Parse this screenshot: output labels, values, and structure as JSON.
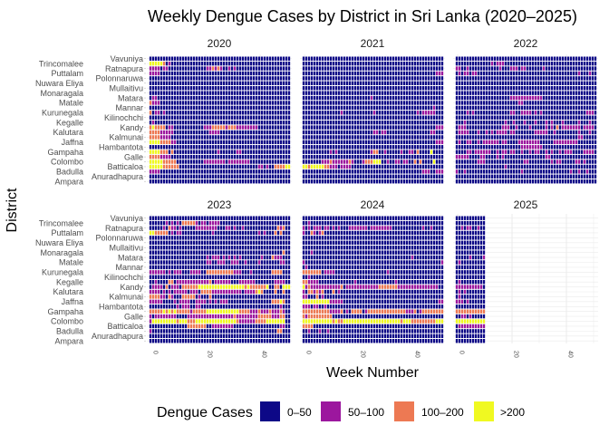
{
  "chart_data": {
    "type": "heatmap",
    "title": "Weekly Dengue Cases by District in Sri Lanka (2020–2025)",
    "xlabel": "Week Number",
    "ylabel": "District",
    "x_ticks": [
      0,
      20,
      40
    ],
    "grid": true,
    "legend": {
      "title": "Dengue Cases",
      "placement": "bottom",
      "categories": [
        {
          "label": "0–50",
          "color": "#0d0887"
        },
        {
          "label": "50–100",
          "color": "#9c179e"
        },
        {
          "label": "100–200",
          "color": "#ed7953"
        },
        {
          "label": ">200",
          "color": "#f0f921"
        }
      ]
    },
    "districts": [
      "Vavuniya",
      "Trincomalee",
      "Ratnapura",
      "Puttalam",
      "Polonnaruwa",
      "Nuwara Eliya",
      "Mullaitivu",
      "Monaragala",
      "Matara",
      "Matale",
      "Mannar",
      "Kurunegala",
      "Kilinochchi",
      "Kegalle",
      "Kandy",
      "Kalutara",
      "Kalmunai",
      "Jaffna",
      "Hambantota",
      "Gampaha",
      "Galle",
      "Colombo",
      "Batticaloa",
      "Badulla",
      "Anuradhapura",
      "Ampara"
    ],
    "facets": [
      {
        "year": "2020",
        "rows": [
          "0000000000000000000000000000000000000000000000000000",
          "3333320100000000000000000000000000000000000000000000",
          "1111011000000000000001121210010100000000000000000000",
          "1111000000000000000000000000000000000000000000000000",
          "0000000000000000000000000000000000000000000000000000",
          "0000000000000000000000000000000000000000000000000000",
          "0000000000000000000000000000000000000000000000000000",
          "0000000000000000000000000000000000000000000000000000",
          "0110000000000000000000000000000000000000000000000000",
          "2111000000000000000000000000000000000000000000000000",
          "0000000000000000000000000000000000000000000000000000",
          "2011010000000000000000000000000000000000000000000000",
          "0000000000000000000000000000000000000000000000000000",
          "0100000000000000000000000000000000000000000000000000",
          "2322220110000000000011122222122211111111000000000000",
          "2222111110000000000000111100000000000000000000000000",
          "2222111100000000000000000000000000000000000000000000",
          "3333222211000000000000000000000000000000000000000000",
          "0000000000000000000000000000000000000000000000000000",
          "3333222020000000000000000100000011000000000000000000",
          "2222111100000000000000000000000000000000000000000000",
          "3333322222000000000011111111011111111000000000000000",
          "3333322222200000000000000000000000000000110100222233",
          "1111000000000000000000000000000000000000000000000000",
          "0000000000000000000000000000000000000000000000000000",
          "0000000000000000000000000000000000000000000000000000"
        ]
      },
      {
        "year": "2021",
        "rows": [
          "0000000000000000000000000000000000000000000000000000",
          "0000000000000000000000000000000000000000000000000000",
          "0000000000000000000000000000000000000000000000000000",
          "0000000000000000000000000000000000000000000000000111",
          "0000000000000000000000000000000000000000000000000000",
          "0000000000000000000000000000000000000000000000000000",
          "0000000000000000000000000000000000000000000000000000",
          "0000000000000000000000000000000000000000000000000000",
          "0000000000000000000000000100000000000000000000000000",
          "0000000000000000000000000000000000000000000000000000",
          "0000000000000000000000000000000000000000000000001000",
          "0000000000000010000000000010000000000000001011111000",
          "0000000000000000000000000000000000000000000000000000",
          "0000000000000000000000000000000000000000000000000000",
          "0000000000000000000000000000000000000000000000000111",
          "0000000000000000000000000011011000000000000000011000",
          "0000000000000000000000000000000000000000000000000000",
          "0000000000000000000000000000000000000000000000000111",
          "0000000000000000000000000000000000000000000000000000",
          "0000000000101000000000000122001000001001102000030000",
          "0000000000000000000000000000000000000000000000000000",
          "0000000111211111121000122233300100110110020200003000",
          "3323333322111011110000000000000000000000000000000000",
          "0000000000000000000000000000000000000000000011100111",
          "0000000000000000000000000000000000000000000000000000",
          "0000000000000000000000000000000000000000000000000000"
        ]
      },
      {
        "year": "2022",
        "rows": [
          "0000000000000000000000000000000000000000000000000000",
          "0000000000000101110000000000000000000000000000000000",
          "1100100000000000100011101100000010000000000000000000",
          "0101101100000000000000000000000000000000000001000100",
          "0000000000000000000000000000000000000000000000000000",
          "0000000000000000000000000000000000000000000000000000",
          "0000000000000000000000000000000000000000000000000000",
          "0000000000000000000000000000000000000000000000000000",
          "0000000000000000000011111111111100000000000000000000",
          "0000000000000000000000011000000000000000000000000000",
          "0000000000000000000000000000000000000000000000000000",
          "0000101000000000000011001111010100000000000000001110",
          "0000000000000000000000000000000000000000000000000000",
          "0001000000000000001001000100010001010001000001000100",
          "0111000000000000011100100001000001010201111111011110",
          "0111100010010101111011000000011111001000000001000100",
          "0000000000000000000000000000000000000000000001100000",
          "0100110010111111011000011111111000001111111110000000",
          "0000000000000000000000001111111100000000000000000000",
          "0000110111111001011011001001011001010010111000011110",
          "1111100001100001010000000000000001100000000000000000",
          "0000000011100000000000000110000000010110000011010000",
          "0000000000000000001000000000000000000000000000000000",
          "1001000000000000000000001000000000000000001001001000",
          "0000000000000000000000000000000000000000000000000000",
          "0000000000000000000000000000000000000000000000000000"
        ]
      },
      {
        "year": "2023",
        "rows": [
          "0000000000000000000000000000000000000000000000000000",
          "0000001010102222210110111100000000000000000000000000",
          "0000010211010000011111111000110100100000000000021200",
          "3322222010110000000000010000000000000000101000202000",
          "0000000000000000000000000000000000000000000000000000",
          "0000000000000000000000000000000000000000000000000000",
          "0000000000000000000000000000000000000000000000000000",
          "0000000000000000000000000000000000000000000000000200",
          "0000000000000000000001011101010101000000010002111000",
          "0000000000000000000001100111001110010000100000001100",
          "0000000000000000000000000000000000000000000000000000",
          "1111110101110001111002222222222111000100000002222000",
          "0000000000000000000000000000000000000000000000000000",
          "0010000220111111111111201111110001111110000000111100",
          "0111102011102222223333333333333333323222222300220333",
          "1111010101111101110222211111111111011112320000200200",
          "2222110210002222201000200000000000000000000000000000",
          "1111100001011110011110101011100000000000000002223200",
          "0000000000101110011000000000000000000000000000001000",
          "2222232323222221222223333333333332222111211121112100",
          "1011111111000011111111111111111211111111222221112200",
          "1333333333233322233333333333333321111112222333333300",
          "0000000000000022222220011111111000000000000000001100",
          "1000000000000000000000000000000000000000000000022000",
          "0000000000000000000000000000000000000000000000000000",
          "0000000000000000000000000000000000000000000000000000"
        ]
      },
      {
        "year": "2024",
        "rows": [
          "0000000000000000000000000000000000000000000000000000",
          "0010000000000000000000000000000000000000000000000000",
          "1010111011010100011111110111111110000000000010010000",
          "1002101200000000000000000000000000000000000000000000",
          "0000000000000000000000000000000000000000000000000000",
          "0000000000000000000000000000000000000000000000000000",
          "0000000000000000000000000000000000000000000000000000",
          "0001000000000000000000000000000000000000000000000000",
          "0000000000000000000000000000000000000000100000000000",
          "1000000000000000000000000000000000000000000000000001",
          "0100000000000000000000000000000000000000000000000000",
          "2222222011110000000000000000000100000000000000000000",
          "0010000000000000000000000000000000000000000000000000",
          "2211110000000000000100000000000000100000000000000000",
          "3121111111111120111111111111222222211111111111111100",
          "1022121200020100000000000000000000000000000000000000",
          "1100020100000000000000000000000000000000000000000000",
          "3333333333111110000000000000000000000000000000000011",
          "1110110010000000000000000000000000000000000000000000",
          "2222222222111120102222012222222222222211120122222222",
          "2122222222200000000000000000000000000000000000000000",
          "3333333333323223333333333333333333332333222222222333",
          "2222000000000000000000000000000000000000000000000000",
          "0010001001000000000000000000000000000000000000000000",
          "0000000000000000000000000000000000000000000000000000",
          "0000000000000000000000000000000000000000000000000000"
        ]
      },
      {
        "year": "2025",
        "rows": [
          "00000000000",
          "00000000000",
          "00101100100",
          "00000000000",
          "00000000000",
          "00000000000",
          "00000000000",
          "00000000000",
          "00000100001",
          "01000000000",
          "00000000000",
          "00000000000",
          "00000000000",
          "01000000000",
          "11111111110",
          "01010000000",
          "01000000000",
          "11101000000",
          "00000000000",
          "22222222222",
          "00110100000",
          "33333333333",
          "01111111111",
          "00000000000",
          "00000000000",
          "00000000000"
        ]
      }
    ]
  }
}
